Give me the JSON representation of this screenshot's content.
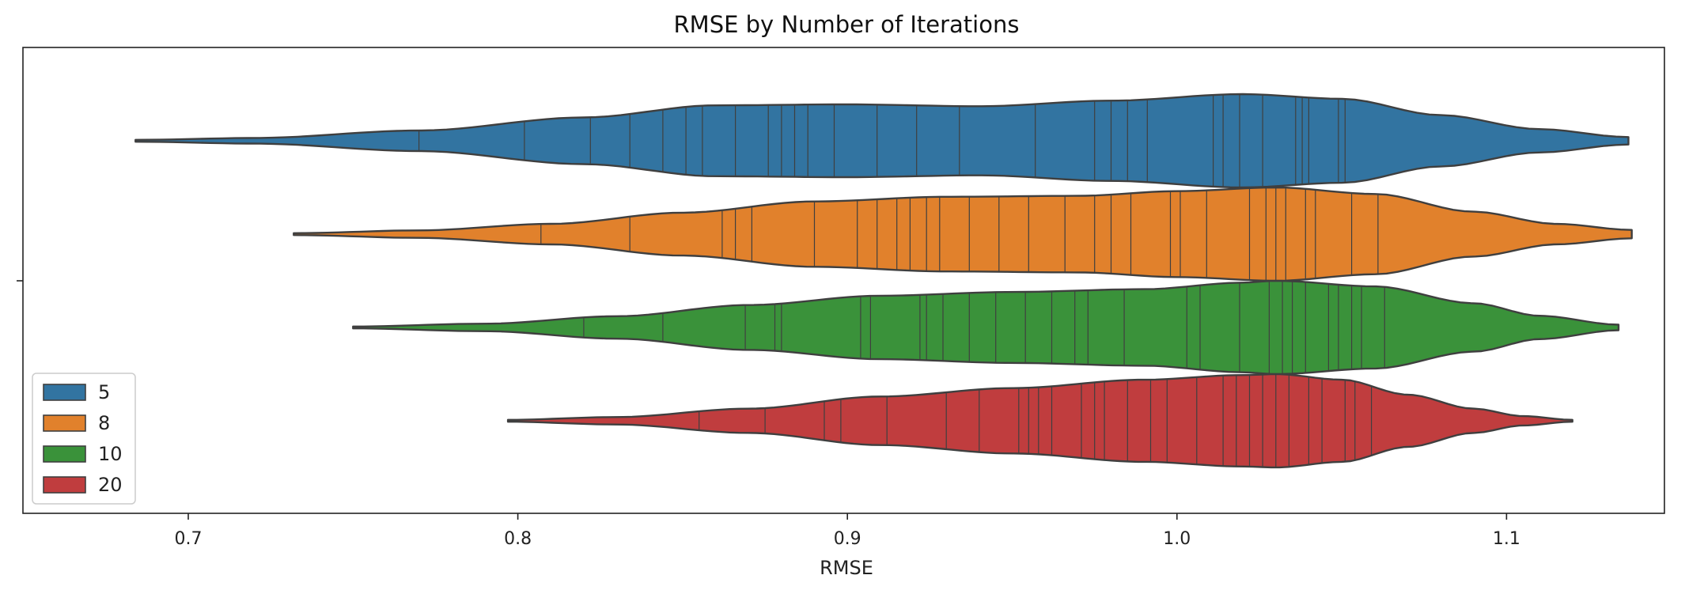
{
  "chart_data": {
    "type": "violin",
    "orientation": "horizontal",
    "title": "RMSE by Number of Iterations",
    "xlabel": "RMSE",
    "ylabel": "",
    "xlim": [
      0.65,
      1.15
    ],
    "xticks": [
      0.7,
      0.8,
      0.9,
      1.0,
      1.1
    ],
    "xtick_labels": [
      "0.7",
      "0.8",
      "0.9",
      "1.0",
      "1.1"
    ],
    "grid": false,
    "inner": "stick",
    "legend": {
      "position": "lower-left",
      "entries": [
        "5",
        "8",
        "10",
        "20"
      ]
    },
    "series": [
      {
        "name": "5",
        "color": "#3274a1",
        "range": [
          0.684,
          1.137
        ],
        "profile": [
          [
            0.684,
            0.02
          ],
          [
            0.72,
            0.06
          ],
          [
            0.77,
            0.22
          ],
          [
            0.82,
            0.5
          ],
          [
            0.86,
            0.76
          ],
          [
            0.9,
            0.78
          ],
          [
            0.94,
            0.74
          ],
          [
            0.98,
            0.86
          ],
          [
            1.02,
            1.0
          ],
          [
            1.05,
            0.9
          ],
          [
            1.08,
            0.55
          ],
          [
            1.11,
            0.25
          ],
          [
            1.137,
            0.08
          ]
        ],
        "sticks": [
          0.77,
          0.802,
          0.822,
          0.834,
          0.844,
          0.851,
          0.856,
          0.866,
          0.876,
          0.88,
          0.884,
          0.888,
          0.896,
          0.909,
          0.921,
          0.934,
          0.957,
          0.975,
          0.98,
          0.985,
          0.991,
          1.011,
          1.014,
          1.019,
          1.026,
          1.036,
          1.038,
          1.04,
          1.049,
          1.051
        ]
      },
      {
        "name": "8",
        "color": "#e1812c",
        "range": [
          0.732,
          1.138
        ],
        "profile": [
          [
            0.732,
            0.02
          ],
          [
            0.77,
            0.08
          ],
          [
            0.81,
            0.22
          ],
          [
            0.85,
            0.46
          ],
          [
            0.89,
            0.7
          ],
          [
            0.93,
            0.8
          ],
          [
            0.97,
            0.82
          ],
          [
            1.0,
            0.92
          ],
          [
            1.03,
            1.0
          ],
          [
            1.06,
            0.86
          ],
          [
            1.09,
            0.48
          ],
          [
            1.115,
            0.22
          ],
          [
            1.138,
            0.09
          ]
        ],
        "sticks": [
          0.807,
          0.834,
          0.862,
          0.866,
          0.871,
          0.89,
          0.903,
          0.909,
          0.915,
          0.919,
          0.924,
          0.928,
          0.937,
          0.946,
          0.955,
          0.966,
          0.975,
          0.98,
          0.986,
          0.998,
          1.001,
          1.009,
          1.022,
          1.027,
          1.03,
          1.033,
          1.039,
          1.042,
          1.053,
          1.061
        ]
      },
      {
        "name": "10",
        "color": "#3a923a",
        "range": [
          0.75,
          1.134
        ],
        "profile": [
          [
            0.75,
            0.02
          ],
          [
            0.79,
            0.08
          ],
          [
            0.83,
            0.24
          ],
          [
            0.87,
            0.48
          ],
          [
            0.91,
            0.68
          ],
          [
            0.95,
            0.76
          ],
          [
            0.99,
            0.82
          ],
          [
            1.02,
            0.96
          ],
          [
            1.03,
            1.0
          ],
          [
            1.06,
            0.88
          ],
          [
            1.09,
            0.52
          ],
          [
            1.11,
            0.25
          ],
          [
            1.134,
            0.06
          ]
        ],
        "sticks": [
          0.82,
          0.844,
          0.869,
          0.878,
          0.88,
          0.904,
          0.907,
          0.922,
          0.924,
          0.929,
          0.937,
          0.945,
          0.954,
          0.962,
          0.969,
          0.973,
          0.984,
          1.003,
          1.007,
          1.019,
          1.028,
          1.032,
          1.035,
          1.039,
          1.046,
          1.049,
          1.053,
          1.056,
          1.063
        ]
      },
      {
        "name": "20",
        "color": "#c03d3e",
        "range": [
          0.797,
          1.12
        ],
        "profile": [
          [
            0.797,
            0.02
          ],
          [
            0.83,
            0.08
          ],
          [
            0.87,
            0.26
          ],
          [
            0.91,
            0.52
          ],
          [
            0.95,
            0.7
          ],
          [
            0.99,
            0.88
          ],
          [
            1.02,
            0.98
          ],
          [
            1.03,
            1.0
          ],
          [
            1.05,
            0.88
          ],
          [
            1.07,
            0.56
          ],
          [
            1.09,
            0.26
          ],
          [
            1.105,
            0.1
          ],
          [
            1.12,
            0.02
          ]
        ],
        "sticks": [
          0.855,
          0.875,
          0.893,
          0.898,
          0.912,
          0.93,
          0.94,
          0.952,
          0.955,
          0.958,
          0.962,
          0.971,
          0.975,
          0.978,
          0.985,
          0.992,
          0.997,
          1.006,
          1.014,
          1.018,
          1.022,
          1.026,
          1.03,
          1.034,
          1.04,
          1.044,
          1.051,
          1.054,
          1.059
        ]
      }
    ]
  }
}
